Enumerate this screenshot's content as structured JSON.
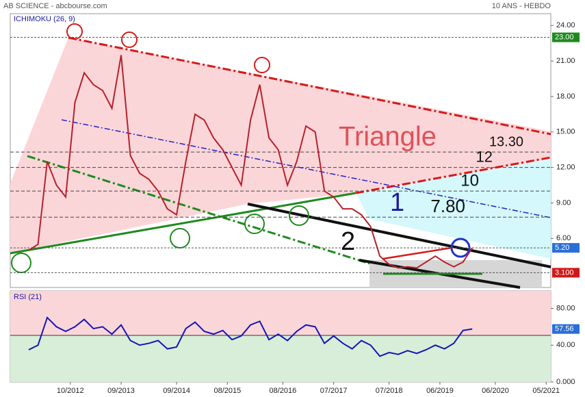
{
  "chart_data": [
    {
      "type": "line",
      "title": "AB SCIENCE - abcbourse.com",
      "subtitle": "10 ANS - HEBDO",
      "indicator": "ICHIMOKU (26, 9)",
      "x": [
        "01/2012",
        "03/2012",
        "05/2012",
        "07/2012",
        "09/2012",
        "11/2012",
        "01/2013",
        "03/2013",
        "05/2013",
        "07/2013",
        "09/2013",
        "11/2013",
        "01/2014",
        "03/2014",
        "05/2014",
        "07/2014",
        "09/2014",
        "11/2014",
        "01/2015",
        "03/2015",
        "05/2015",
        "07/2015",
        "09/2015",
        "11/2015",
        "01/2016",
        "03/2016",
        "05/2016",
        "07/2016",
        "09/2016",
        "11/2016",
        "01/2017",
        "03/2017",
        "05/2017",
        "07/2017",
        "09/2017",
        "11/2017",
        "01/2018",
        "03/2018",
        "05/2018",
        "07/2018",
        "09/2018",
        "11/2018",
        "01/2019",
        "03/2019",
        "05/2019",
        "07/2019",
        "09/2019",
        "11/2019",
        "01/2020"
      ],
      "series": [
        {
          "color": "#b8202a",
          "values": [
            5.0,
            5.5,
            12.5,
            10.5,
            9.5,
            17.5,
            20.0,
            19.0,
            18.5,
            17.0,
            21.5,
            13.0,
            11.5,
            11.0,
            10.0,
            8.5,
            8.0,
            12.5,
            16.5,
            16.0,
            14.5,
            13.5,
            12.0,
            10.5,
            16.0,
            19.0,
            14.5,
            13.5,
            10.5,
            12.5,
            15.5,
            15.0,
            10.0,
            9.5,
            8.5,
            8.5,
            8.0,
            7.0,
            4.5,
            3.8,
            3.5,
            3.6,
            3.5,
            4.0,
            4.5,
            4.0,
            3.6,
            4.0,
            5.2
          ]
        }
      ],
      "xlim": [
        "09/2011",
        "06/2021"
      ],
      "ylim": [
        1.85,
        25.0
      ],
      "yticks": [
        {
          "value": 24,
          "label": "24.00"
        },
        {
          "value": 21,
          "label": "21.00"
        },
        {
          "value": 18,
          "label": "18.00"
        },
        {
          "value": 15,
          "label": "15.00"
        },
        {
          "value": 12,
          "label": "12.00"
        },
        {
          "value": 9,
          "label": "9.00"
        },
        {
          "value": 6,
          "label": "6.00"
        }
      ],
      "price_labels": [
        {
          "value": 23,
          "label": "23.00",
          "color": "#1e8a1e"
        },
        {
          "value": 5.2,
          "label": "5.20",
          "color": "#2a6fd6"
        },
        {
          "value": 3.1,
          "label": "3.100",
          "color": "#d01818"
        }
      ],
      "levels": [
        {
          "value": 13.3,
          "label": "13.30"
        },
        12,
        10,
        {
          "value": 7.8,
          "label": "7.80"
        }
      ],
      "annotations": [
        "Triangle",
        "1",
        "2"
      ]
    },
    {
      "type": "line",
      "title": "RSI (21)",
      "x": [
        "01/2012",
        "03/2012",
        "05/2012",
        "07/2012",
        "09/2012",
        "11/2012",
        "01/2013",
        "03/2013",
        "05/2013",
        "07/2013",
        "09/2013",
        "11/2013",
        "01/2014",
        "03/2014",
        "05/2014",
        "07/2014",
        "09/2014",
        "11/2014",
        "01/2015",
        "03/2015",
        "05/2015",
        "07/2015",
        "09/2015",
        "11/2015",
        "01/2016",
        "03/2016",
        "05/2016",
        "07/2016",
        "09/2016",
        "11/2016",
        "01/2017",
        "03/2017",
        "05/2017",
        "07/2017",
        "09/2017",
        "11/2017",
        "01/2018",
        "03/2018",
        "05/2018",
        "07/2018",
        "09/2018",
        "11/2018",
        "01/2019",
        "03/2019",
        "05/2019",
        "07/2019",
        "09/2019",
        "11/2019",
        "01/2020"
      ],
      "series": [
        {
          "color": "#1414b8",
          "values": [
            35,
            40,
            70,
            60,
            55,
            60,
            68,
            58,
            60,
            52,
            62,
            45,
            40,
            42,
            45,
            36,
            38,
            58,
            65,
            55,
            52,
            56,
            46,
            50,
            62,
            66,
            46,
            52,
            45,
            55,
            62,
            60,
            42,
            50,
            42,
            36,
            45,
            40,
            28,
            32,
            30,
            34,
            31,
            35,
            40,
            36,
            42,
            56,
            57.56
          ]
        }
      ],
      "current": {
        "value": 57.56,
        "label": "57.56"
      },
      "xlim": [
        "09/2011",
        "06/2021"
      ],
      "ylim": [
        0,
        99
      ],
      "yticks": [
        {
          "value": 80,
          "label": "80.00"
        },
        {
          "value": 40,
          "label": "40.00"
        },
        {
          "value": 0,
          "label": "0.000"
        }
      ],
      "xticks": [
        "10/2012",
        "09/2013",
        "09/2014",
        "08/2015",
        "08/2016",
        "07/2017",
        "07/2018",
        "06/2019",
        "06/2020",
        "05/2021"
      ]
    }
  ]
}
